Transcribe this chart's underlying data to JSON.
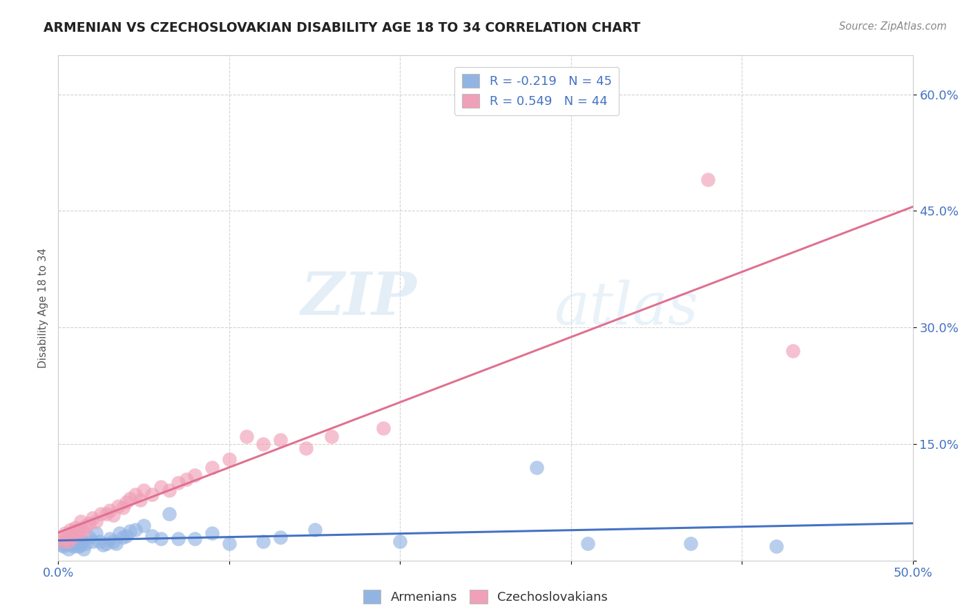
{
  "title": "ARMENIAN VS CZECHOSLOVAKIAN DISABILITY AGE 18 TO 34 CORRELATION CHART",
  "source_text": "Source: ZipAtlas.com",
  "ylabel": "Disability Age 18 to 34",
  "xlim": [
    0.0,
    0.5
  ],
  "ylim": [
    0.0,
    0.65
  ],
  "x_tick_labels": [
    "0.0%",
    "",
    "",
    "",
    "",
    "50.0%"
  ],
  "y_tick_labels": [
    "",
    "15.0%",
    "30.0%",
    "45.0%",
    "60.0%"
  ],
  "legend_R_armenians": "-0.219",
  "legend_N_armenians": "45",
  "legend_R_czechoslovakians": "0.549",
  "legend_N_czechoslovakians": "44",
  "armenian_color": "#92b4e3",
  "czechoslovakian_color": "#f0a0b8",
  "armenian_line_color": "#4472c4",
  "czechoslovakian_line_color": "#e07090",
  "watermark_zip": "ZIP",
  "watermark_atlas": "atlas",
  "armenians_x": [
    0.002,
    0.003,
    0.004,
    0.005,
    0.006,
    0.007,
    0.008,
    0.009,
    0.01,
    0.011,
    0.012,
    0.013,
    0.014,
    0.015,
    0.016,
    0.018,
    0.02,
    0.022,
    0.024,
    0.026,
    0.028,
    0.03,
    0.032,
    0.034,
    0.036,
    0.038,
    0.04,
    0.042,
    0.045,
    0.05,
    0.055,
    0.06,
    0.065,
    0.07,
    0.08,
    0.09,
    0.1,
    0.12,
    0.13,
    0.15,
    0.2,
    0.28,
    0.31,
    0.37,
    0.42
  ],
  "armenians_y": [
    0.02,
    0.018,
    0.022,
    0.025,
    0.015,
    0.03,
    0.02,
    0.018,
    0.022,
    0.025,
    0.018,
    0.02,
    0.025,
    0.015,
    0.022,
    0.03,
    0.025,
    0.035,
    0.025,
    0.02,
    0.022,
    0.028,
    0.025,
    0.022,
    0.035,
    0.03,
    0.032,
    0.038,
    0.04,
    0.045,
    0.032,
    0.028,
    0.06,
    0.028,
    0.028,
    0.035,
    0.022,
    0.025,
    0.03,
    0.04,
    0.025,
    0.12,
    0.022,
    0.022,
    0.018
  ],
  "czechoslovakians_x": [
    0.002,
    0.003,
    0.004,
    0.005,
    0.006,
    0.007,
    0.008,
    0.009,
    0.01,
    0.011,
    0.012,
    0.013,
    0.015,
    0.016,
    0.018,
    0.02,
    0.022,
    0.025,
    0.028,
    0.03,
    0.032,
    0.035,
    0.038,
    0.04,
    0.042,
    0.045,
    0.048,
    0.05,
    0.055,
    0.06,
    0.065,
    0.07,
    0.075,
    0.08,
    0.09,
    0.1,
    0.11,
    0.12,
    0.13,
    0.145,
    0.16,
    0.19,
    0.38,
    0.43
  ],
  "czechoslovakians_y": [
    0.028,
    0.025,
    0.035,
    0.03,
    0.025,
    0.04,
    0.03,
    0.038,
    0.042,
    0.035,
    0.04,
    0.05,
    0.038,
    0.045,
    0.048,
    0.055,
    0.05,
    0.06,
    0.06,
    0.065,
    0.058,
    0.07,
    0.068,
    0.075,
    0.08,
    0.085,
    0.078,
    0.09,
    0.085,
    0.095,
    0.09,
    0.1,
    0.105,
    0.11,
    0.12,
    0.13,
    0.16,
    0.15,
    0.155,
    0.145,
    0.16,
    0.17,
    0.49,
    0.27
  ],
  "background_color": "#ffffff",
  "grid_color": "#cccccc"
}
